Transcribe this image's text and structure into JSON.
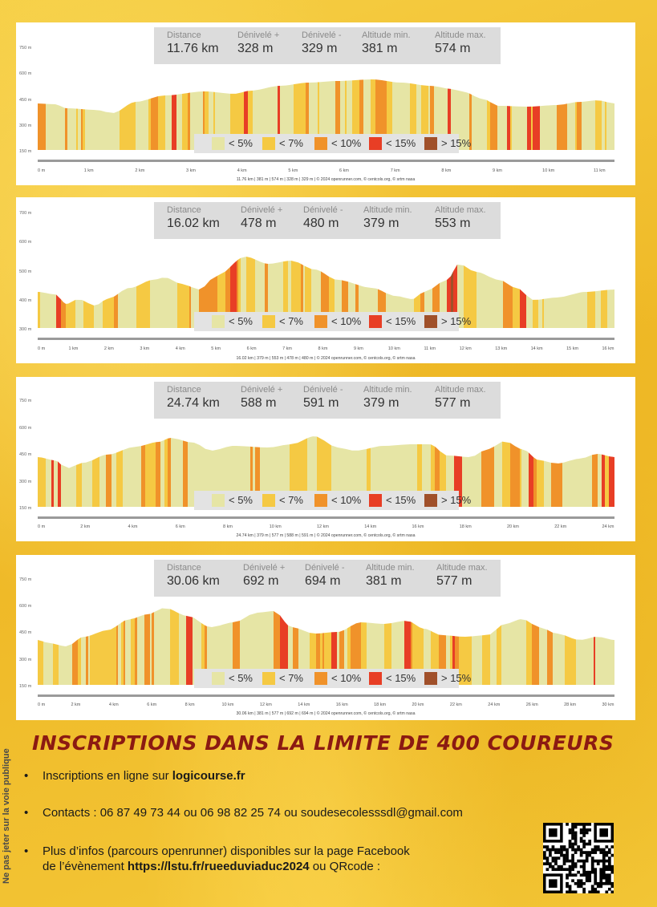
{
  "legend": [
    {
      "label": "< 5%",
      "color": "#e6e5a5"
    },
    {
      "label": "< 7%",
      "color": "#f5c943"
    },
    {
      "label": "< 10%",
      "color": "#f0922a"
    },
    {
      "label": "< 15%",
      "color": "#e83e25"
    },
    {
      "label": "> 15%",
      "color": "#a0502a"
    }
  ],
  "charts": [
    {
      "stats": [
        {
          "label": "Distance",
          "value": "11.76 km"
        },
        {
          "label": "Dénivelé +",
          "value": "328 m"
        },
        {
          "label": "Dénivelé -",
          "value": "329 m"
        },
        {
          "label": "Altitude min.",
          "value": "381 m"
        },
        {
          "label": "Altitude max.",
          "value": "574 m"
        }
      ],
      "y_ticks": [
        "750 m",
        "600 m",
        "450 m",
        "300 m",
        "150 m"
      ],
      "x_ticks": [
        "0 m",
        "1 km",
        "2 km",
        "3 km",
        "4 km",
        "5 km",
        "6 km",
        "7 km",
        "8 km",
        "9 km",
        "10 km",
        "11 km"
      ],
      "footer": "11.76 km | 381 m | 574 m | 328 m | 329 m | © 2024 openrunner.com, © centcols.org, © srtm nasa"
    },
    {
      "stats": [
        {
          "label": "Distance",
          "value": "16.02 km"
        },
        {
          "label": "Dénivelé +",
          "value": "478 m"
        },
        {
          "label": "Dénivelé -",
          "value": "480 m"
        },
        {
          "label": "Altitude min.",
          "value": "379 m"
        },
        {
          "label": "Altitude max.",
          "value": "553 m"
        }
      ],
      "y_ticks": [
        "700 m",
        "600 m",
        "500 m",
        "400 m",
        "300 m"
      ],
      "x_ticks": [
        "0 m",
        "1 km",
        "2 km",
        "3 km",
        "4 km",
        "5 km",
        "6 km",
        "7 km",
        "8 km",
        "9 km",
        "10 km",
        "11 km",
        "12 km",
        "13 km",
        "14 km",
        "15 km",
        "16 km"
      ],
      "footer": "16.02 km | 379 m | 553 m | 478 m | 480 m | © 2024 openrunner.com, © centcols.org, © srtm nasa"
    },
    {
      "stats": [
        {
          "label": "Distance",
          "value": "24.74 km"
        },
        {
          "label": "Dénivelé +",
          "value": "588 m"
        },
        {
          "label": "Dénivelé -",
          "value": "591 m"
        },
        {
          "label": "Altitude min.",
          "value": "379 m"
        },
        {
          "label": "Altitude max.",
          "value": "577 m"
        }
      ],
      "y_ticks": [
        "750 m",
        "600 m",
        "450 m",
        "300 m",
        "150 m"
      ],
      "x_ticks": [
        "0 m",
        "2 km",
        "4 km",
        "6 km",
        "8 km",
        "10 km",
        "12 km",
        "14 km",
        "16 km",
        "18 km",
        "20 km",
        "22 km",
        "24 km"
      ],
      "footer": "24.74 km | 379 m | 577 m | 588 m | 591 m | © 2024 openrunner.com, © centcols.org, © srtm nasa"
    },
    {
      "stats": [
        {
          "label": "Distance",
          "value": "30.06 km"
        },
        {
          "label": "Dénivelé +",
          "value": "692 m"
        },
        {
          "label": "Dénivelé -",
          "value": "694 m"
        },
        {
          "label": "Altitude min.",
          "value": "381 m"
        },
        {
          "label": "Altitude max.",
          "value": "577 m"
        }
      ],
      "y_ticks": [
        "750 m",
        "600 m",
        "450 m",
        "300 m",
        "150 m"
      ],
      "x_ticks": [
        "0 m",
        "2 km",
        "4 km",
        "6 km",
        "8 km",
        "10 km",
        "12 km",
        "14 km",
        "16 km",
        "18 km",
        "20 km",
        "22 km",
        "24 km",
        "26 km",
        "28 km",
        "30 km"
      ],
      "footer": "30.06 km | 381 m | 577 m | 692 m | 694 m | © 2024 openrunner.com, © centcols.org, © srtm nasa"
    }
  ],
  "info": {
    "title": "INSCRIPTIONS DANS LA LIMITE DE 400 COUREURS",
    "bullet1_text": "Inscriptions en ligne sur ",
    "bullet1_bold": "logicourse.fr",
    "bullet2_text": "Contacts : 06 87 49 73 44 ou 06 98 82 25 74 ou soudesecolesssdl@gmail.com",
    "bullet3_line1": "Plus d’infos (parcours openrunner) disponibles sur la page Facebook",
    "bullet3_line2a": "de l’évènement ",
    "bullet3_bold": "https://lstu.fr/rueeduviaduc2024",
    "bullet3_line2b": " ou QRcode :",
    "bullet_symbol": "•",
    "side_text": "Ne pas jeter sur la voie publique"
  }
}
